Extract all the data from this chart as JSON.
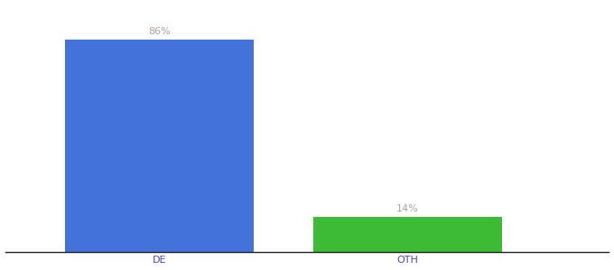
{
  "categories": [
    "DE",
    "OTH"
  ],
  "values": [
    86,
    14
  ],
  "bar_colors": [
    "#4472db",
    "#3dbb35"
  ],
  "label_color": "#b0a0a0",
  "label_fontsize": 8,
  "xlabel_fontsize": 8,
  "xlabel_color": "#4444cc",
  "background_color": "#ffffff",
  "ylim": [
    0,
    100
  ],
  "bar_width": 0.28,
  "x_positions": [
    0.28,
    0.65
  ]
}
